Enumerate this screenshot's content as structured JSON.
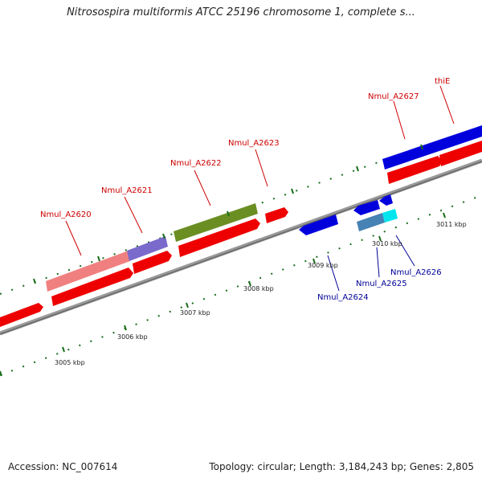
{
  "title": "Nitrosospira multiformis ATCC 25196 chromosome 1, complete s...",
  "footer": {
    "accession": "Accession: NC_007614",
    "summary": "Topology: circular; Length: 3,184,243 bp; Genes: 2,805"
  },
  "colors": {
    "plus_strand": "#ee0000",
    "minus_strand": "#0000dd",
    "plus_label": "#cc0000",
    "minus_label": "#000099",
    "backbone": "#888888",
    "tick": "#1a6e1a"
  },
  "genes": [
    {
      "id": "Nmul_A2620",
      "label": "Nmul_A2620"
    },
    {
      "id": "Nmul_A2621",
      "label": "Nmul_A2621"
    },
    {
      "id": "Nmul_A2622",
      "label": "Nmul_A2622"
    },
    {
      "id": "Nmul_A2623",
      "label": "Nmul_A2623"
    },
    {
      "id": "Nmul_A2624",
      "label": "Nmul_A2624"
    },
    {
      "id": "Nmul_A2625",
      "label": "Nmul_A2625"
    },
    {
      "id": "Nmul_A2626",
      "label": "Nmul_A2626"
    },
    {
      "id": "Nmul_A2627",
      "label": "Nmul_A2627"
    },
    {
      "id": "thiE",
      "label": "thiE"
    }
  ],
  "scale_ticks": [
    "3005 kbp",
    "3006 kbp",
    "3007 kbp",
    "3008 kbp",
    "3009 kbp",
    "3010 kbp",
    "3011 kbp"
  ]
}
